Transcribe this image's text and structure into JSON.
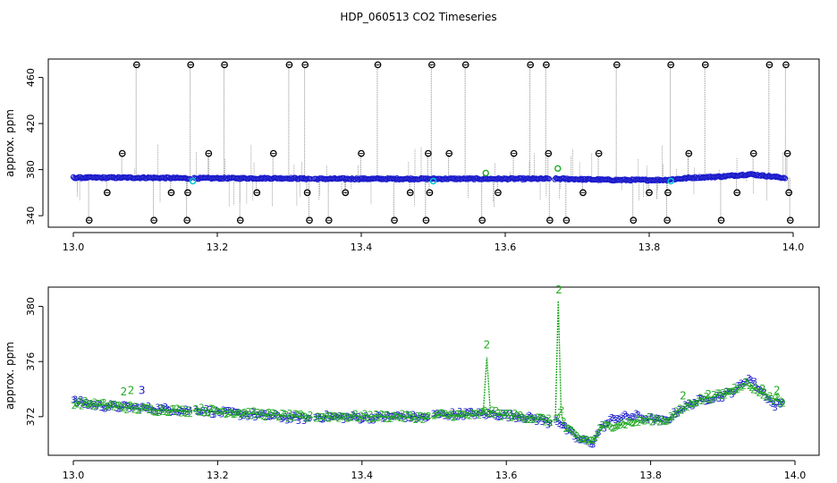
{
  "title": "HDP_060513  CO2 Timeseries",
  "colors": {
    "background": "#ffffff",
    "axis": "#000000",
    "series_blue": "#1a1acc",
    "series_cyan": "#00c8d0",
    "series_green": "#22aa22",
    "outlier_black": "#000000",
    "spike_grey": "#8c8c8c"
  },
  "chart_data": [
    {
      "type": "scatter",
      "ylabel": "approx. ppm",
      "xlabel": "",
      "xlim": [
        13.0,
        14.0
      ],
      "ylim": [
        330,
        476
      ],
      "xticks": [
        "13.0",
        "13.2",
        "13.4",
        "13.6",
        "13.8",
        "14.0"
      ],
      "xtick_values": [
        13.0,
        13.2,
        13.4,
        13.6,
        13.8,
        14.0
      ],
      "yticks": [
        "340",
        "380",
        "420",
        "460"
      ],
      "ytick_values": [
        340,
        380,
        420,
        460
      ],
      "grid": false,
      "baseline": [
        [
          13.0,
          373
        ],
        [
          13.1,
          373
        ],
        [
          13.16,
          372.5
        ],
        [
          13.3,
          372.5
        ],
        [
          13.33,
          372
        ],
        [
          13.5,
          372
        ],
        [
          13.66,
          372
        ],
        [
          13.68,
          372
        ],
        [
          13.75,
          371
        ],
        [
          13.82,
          371
        ],
        [
          13.86,
          373
        ],
        [
          13.9,
          374
        ],
        [
          13.94,
          376
        ],
        [
          13.985,
          373
        ]
      ],
      "gaps": [
        [
          13.163,
          13.167
        ],
        [
          13.33,
          13.333
        ],
        [
          13.662,
          13.668
        ]
      ],
      "cyan_points": [
        {
          "x": 13.166,
          "y": 370
        },
        {
          "x": 13.5,
          "y": 370
        },
        {
          "x": 13.83,
          "y": 370
        }
      ],
      "green_points": [
        {
          "x": 13.573,
          "y": 377
        },
        {
          "x": 13.673,
          "y": 381
        }
      ],
      "outliers": [
        {
          "x": 13.022,
          "y": 336
        },
        {
          "x": 13.047,
          "y": 360
        },
        {
          "x": 13.068,
          "y": 394
        },
        {
          "x": 13.088,
          "y": 471
        },
        {
          "x": 13.112,
          "y": 336
        },
        {
          "x": 13.136,
          "y": 360
        },
        {
          "x": 13.158,
          "y": 336
        },
        {
          "x": 13.159,
          "y": 360
        },
        {
          "x": 13.163,
          "y": 471
        },
        {
          "x": 13.188,
          "y": 394
        },
        {
          "x": 13.21,
          "y": 471
        },
        {
          "x": 13.232,
          "y": 336
        },
        {
          "x": 13.255,
          "y": 360
        },
        {
          "x": 13.278,
          "y": 394
        },
        {
          "x": 13.3,
          "y": 471
        },
        {
          "x": 13.322,
          "y": 471
        },
        {
          "x": 13.325,
          "y": 360
        },
        {
          "x": 13.328,
          "y": 336
        },
        {
          "x": 13.355,
          "y": 336
        },
        {
          "x": 13.378,
          "y": 360
        },
        {
          "x": 13.4,
          "y": 394
        },
        {
          "x": 13.423,
          "y": 471
        },
        {
          "x": 13.446,
          "y": 336
        },
        {
          "x": 13.468,
          "y": 360
        },
        {
          "x": 13.49,
          "y": 336
        },
        {
          "x": 13.493,
          "y": 394
        },
        {
          "x": 13.495,
          "y": 360
        },
        {
          "x": 13.498,
          "y": 471
        },
        {
          "x": 13.522,
          "y": 394
        },
        {
          "x": 13.545,
          "y": 471
        },
        {
          "x": 13.568,
          "y": 336
        },
        {
          "x": 13.59,
          "y": 360
        },
        {
          "x": 13.612,
          "y": 394
        },
        {
          "x": 13.635,
          "y": 471
        },
        {
          "x": 13.657,
          "y": 471
        },
        {
          "x": 13.66,
          "y": 394
        },
        {
          "x": 13.662,
          "y": 336
        },
        {
          "x": 13.685,
          "y": 336
        },
        {
          "x": 13.708,
          "y": 360
        },
        {
          "x": 13.73,
          "y": 394
        },
        {
          "x": 13.755,
          "y": 471
        },
        {
          "x": 13.778,
          "y": 336
        },
        {
          "x": 13.8,
          "y": 360
        },
        {
          "x": 13.825,
          "y": 336
        },
        {
          "x": 13.826,
          "y": 360
        },
        {
          "x": 13.83,
          "y": 471
        },
        {
          "x": 13.855,
          "y": 394
        },
        {
          "x": 13.878,
          "y": 471
        },
        {
          "x": 13.9,
          "y": 336
        },
        {
          "x": 13.922,
          "y": 360
        },
        {
          "x": 13.945,
          "y": 394
        },
        {
          "x": 13.967,
          "y": 471
        },
        {
          "x": 13.99,
          "y": 471
        },
        {
          "x": 13.992,
          "y": 394
        },
        {
          "x": 13.994,
          "y": 360
        },
        {
          "x": 13.996,
          "y": 336
        }
      ]
    },
    {
      "type": "scatter",
      "ylabel": "approx. ppm",
      "xlabel": "",
      "xlim": [
        13.0,
        14.0
      ],
      "ylim": [
        369.2,
        381.4
      ],
      "xticks": [
        "13.0",
        "13.2",
        "13.4",
        "13.6",
        "13.8",
        "14.0"
      ],
      "xtick_values": [
        13.0,
        13.2,
        13.4,
        13.6,
        13.8,
        14.0
      ],
      "yticks": [
        "372",
        "376",
        "380"
      ],
      "ytick_values": [
        372,
        376,
        380
      ],
      "grid": false,
      "series": [
        {
          "marker": "3",
          "color": "blue",
          "x": [
            13.0,
            13.03,
            13.06,
            13.1,
            13.13,
            13.16,
            13.168,
            13.2,
            13.25,
            13.3,
            13.33,
            13.333,
            13.4,
            13.45,
            13.495,
            13.5,
            13.55,
            13.6,
            13.62,
            13.65,
            13.662,
            13.668,
            13.68,
            13.7,
            13.72,
            13.73,
            13.75,
            13.78,
            13.8,
            13.82,
            13.84,
            13.86,
            13.88,
            13.9,
            13.92,
            13.935,
            13.945,
            13.96,
            13.97,
            13.985
          ],
          "values": [
            373.1,
            372.8,
            372.7,
            372.6,
            372.5,
            372.4,
            372.5,
            372.3,
            372.1,
            371.9,
            371.8,
            372.0,
            371.9,
            372.0,
            371.9,
            372.1,
            372.2,
            372.1,
            372.0,
            371.7,
            371.5,
            371.9,
            371.2,
            370.3,
            370.1,
            371.1,
            371.9,
            372.0,
            371.8,
            371.6,
            372.5,
            373.0,
            373.3,
            373.5,
            374.0,
            374.8,
            374.3,
            373.5,
            372.8,
            373.0
          ]
        },
        {
          "marker": "2",
          "color": "green",
          "x": [
            13.0,
            13.05,
            13.1,
            13.16,
            13.168,
            13.25,
            13.33,
            13.333,
            13.45,
            13.495,
            13.5,
            13.56,
            13.568,
            13.573,
            13.578,
            13.6,
            13.65,
            13.662,
            13.668,
            13.672,
            13.676,
            13.68,
            13.7,
            13.72,
            13.73,
            13.8,
            13.82,
            13.86,
            13.9,
            13.93,
            13.96,
            13.985
          ],
          "values": [
            373.0,
            372.8,
            372.5,
            372.4,
            372.5,
            372.2,
            371.9,
            372.0,
            372.0,
            371.9,
            372.1,
            372.1,
            372.3,
            376.3,
            372.3,
            372.1,
            371.8,
            371.6,
            371.9,
            380.4,
            372.4,
            371.2,
            370.4,
            370.2,
            371.2,
            371.8,
            371.7,
            373.1,
            373.6,
            374.4,
            373.5,
            373.0
          ]
        }
      ],
      "labels": [
        {
          "text": "2",
          "x": 13.573,
          "y": 377.2,
          "color": "green"
        },
        {
          "text": "2",
          "x": 13.673,
          "y": 381.2,
          "color": "green"
        },
        {
          "text": "2",
          "x": 13.07,
          "y": 373.8,
          "color": "green"
        },
        {
          "text": "2",
          "x": 13.08,
          "y": 373.9,
          "color": "green"
        },
        {
          "text": "3",
          "x": 13.095,
          "y": 373.9,
          "color": "blue"
        },
        {
          "text": "2",
          "x": 13.845,
          "y": 373.5,
          "color": "green"
        },
        {
          "text": "2",
          "x": 13.88,
          "y": 373.6,
          "color": "green"
        },
        {
          "text": "2",
          "x": 13.955,
          "y": 374.0,
          "color": "green"
        },
        {
          "text": "2",
          "x": 13.975,
          "y": 373.9,
          "color": "green"
        }
      ]
    }
  ]
}
